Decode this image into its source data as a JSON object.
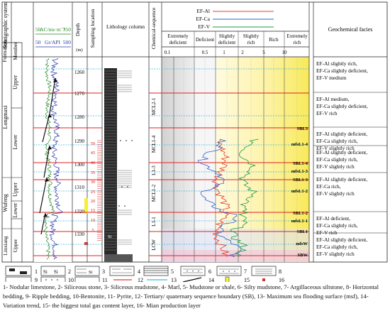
{
  "header": {
    "strat_system": "Stratigraphic system",
    "formation": "Formation",
    "member": "Member",
    "ac_label": "AC/ms·m⁻¹",
    "ac_min": "50",
    "ac_max": "350",
    "gr_label": "Gr/API",
    "gr_min": "50",
    "gr_max": "500",
    "depth": "Depth",
    "depth_unit": "(m)",
    "sampling": "Sampling location",
    "lithology": "Lithology column",
    "chem_seq": "Chemical-sequence",
    "legend": [
      "EF-Al",
      "EF-Ca",
      "EF-V"
    ],
    "classes": [
      "Extremely deficient",
      "Deficient",
      "Slightly deficient",
      "Slightly rich",
      "Rich",
      "Extremely rich"
    ],
    "ticks": [
      "0.1",
      "0.5",
      "1",
      "2",
      "5",
      "10"
    ],
    "facies": "Geochemical facies"
  },
  "formations": [
    "Longmaxi",
    "Wufeng",
    "Linxiang"
  ],
  "members": [
    "Upper",
    "Lower",
    "Upper",
    "Lower",
    "Upper"
  ],
  "depths": [
    "1260",
    "1270",
    "1280",
    "1290",
    "1300",
    "1310",
    "1320",
    "1330"
  ],
  "samples": [
    "50",
    "45",
    "40",
    "35",
    "30",
    "25",
    "20",
    "15",
    "10",
    "5"
  ],
  "sequences": [
    "MCL2-1",
    "MCL1-4",
    "L1-3",
    "MCL1-2",
    "L1-1",
    "LCW"
  ],
  "boundaries": [
    "SBL3",
    "mfsL1-4",
    "SBL1-4",
    "mfsL1-3",
    "SBL1-3",
    "mfsL1-2",
    "SBL1-2",
    "mfsL1-1",
    "SBL1",
    "mfsW",
    "SBW"
  ],
  "facies_rows": [
    [
      "EF-Al slightly rich,",
      "EF-Ca slightly deficient,",
      "EF-V medium"
    ],
    [
      "EF-Al medium,",
      "EF-Ca slightly deficient,",
      "EF-V rich"
    ],
    [
      "EF-Al slightly deficient,",
      "EF-Ca slightly rich,",
      "EF-V slightly rich"
    ],
    [
      "EF-Al slightly deficient,",
      "EF-Ca slightly rich,",
      "EF-V slightly rich"
    ],
    [
      "EF-Al slightly deficient,",
      "EF-Ca rich,",
      "EF-V slightly rich"
    ],
    [
      "EF-Al deficient,",
      "EF-Ca slightly rich,",
      "EF-V rich"
    ],
    [
      "EF-Al slightly deficient,",
      "EF-Ca slightly rich,",
      "EF-V slightly rich"
    ]
  ],
  "key": {
    "nums": [
      "1",
      "2",
      "3",
      "4",
      "5",
      "6",
      "7",
      "8",
      "9",
      "10",
      "11",
      "12",
      "13",
      "14",
      "15",
      "16"
    ],
    "si": "Si",
    "caption": "1- Nodular limestone, 2- Siliceous stone, 3- Siliceous mudstone, 4- Marl, 5- Mudstone or shale, 6- Silty mudstone, 7- Argillaceous siltstone, 8- Horizontal bedding, 9- Ripple bedding, 10-Bentonite, 11- Pyrite, 12- Tertiary/ quaternary sequence boundary (SB), 13- Maximum sea flooding surface (msf), 14- Variation trend, 15- the biggest total gas content layer, 16- Mian production layer"
  },
  "colors": {
    "al": "#e8382f",
    "ca": "#2f5fd0",
    "v": "#1f9a4a",
    "sb": "#e02020",
    "mfs": "#3fb8e0",
    "ac": "#2a8a2a",
    "gr": "#2a3aa8",
    "yellow": "#f7ee3a",
    "grey": "#e2e2e2"
  }
}
